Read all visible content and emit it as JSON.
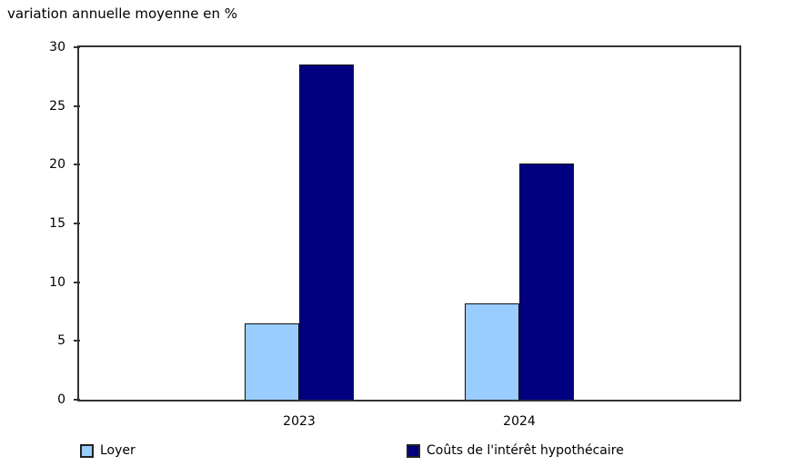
{
  "chart_data": {
    "type": "bar",
    "title": "variation annuelle moyenne en %",
    "categories": [
      "2023",
      "2024"
    ],
    "series": [
      {
        "name": "Loyer",
        "color": "#99CCFF",
        "values": [
          6.5,
          8.2
        ]
      },
      {
        "name": "Coûts de l'intérêt hypothécaire",
        "color": "#000080",
        "values": [
          28.5,
          20.1
        ]
      }
    ],
    "xlabel": "",
    "ylabel": "variation annuelle moyenne en %",
    "ylim": [
      0,
      30
    ],
    "yticks": [
      0,
      5,
      10,
      15,
      20,
      25,
      30
    ],
    "grid": false,
    "legend_position": "bottom",
    "plot_background": "#ffffff",
    "axis_color": "#333333",
    "text_color": "#000000"
  }
}
